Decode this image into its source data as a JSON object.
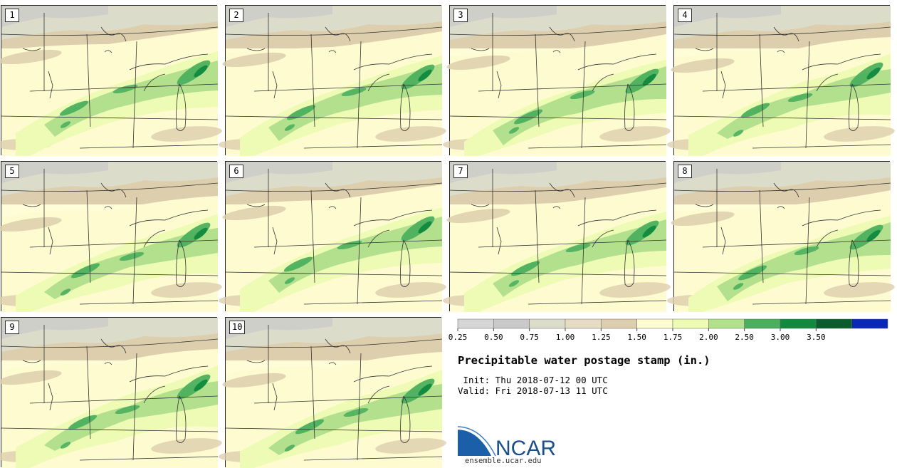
{
  "panels": [
    {
      "label": "1"
    },
    {
      "label": "2"
    },
    {
      "label": "3"
    },
    {
      "label": "4"
    },
    {
      "label": "5"
    },
    {
      "label": "6"
    },
    {
      "label": "7"
    },
    {
      "label": "8"
    },
    {
      "label": "9"
    },
    {
      "label": "10"
    }
  ],
  "colorbar": {
    "ticks": [
      "0.25",
      "0.50",
      "0.75",
      "1.00",
      "1.25",
      "1.50",
      "1.75",
      "2.00",
      "2.50",
      "3.00",
      "3.50"
    ],
    "colors": [
      "#d6d6d6",
      "#c9c9c9",
      "#dcdccb",
      "#e6dcc3",
      "#ddcfad",
      "#fffbd1",
      "#eefbb4",
      "#b2e08d",
      "#4caf5e",
      "#118a3e",
      "#0b5b2c",
      "#0a28b8"
    ]
  },
  "product": {
    "title": "Precipitable water postage stamp (in.)",
    "init": " Init: Thu 2018-07-12 00 UTC",
    "valid": "Valid: Fri 2018-07-13 11 UTC"
  },
  "logo": {
    "name": "NCAR",
    "url": "ensemble.ucar.edu"
  }
}
